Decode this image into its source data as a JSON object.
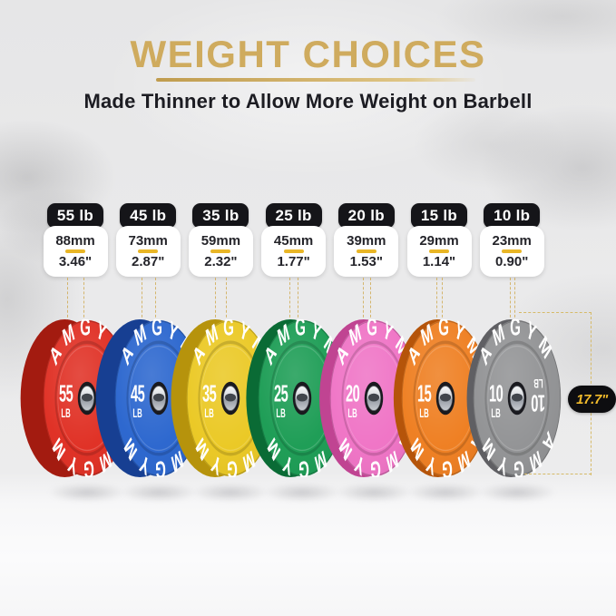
{
  "header": {
    "title": "WEIGHT CHOICES",
    "subtitle": "Made Thinner to Allow More Weight on Barbell"
  },
  "brand_text": "AMGYM",
  "diameter": {
    "label": "17.7\""
  },
  "plates": [
    {
      "label": "55 lb",
      "weight": "55",
      "unit": "LB",
      "thickness_mm": "88mm",
      "thickness_in": "3.46\"",
      "face_color": "#df2a1e",
      "rim_color": "#a31b10",
      "mirrored_weight": false
    },
    {
      "label": "45 lb",
      "weight": "45",
      "unit": "LB",
      "thickness_mm": "73mm",
      "thickness_in": "2.87\"",
      "face_color": "#2562cd",
      "rim_color": "#173f92",
      "mirrored_weight": false
    },
    {
      "label": "35 lb",
      "weight": "35",
      "unit": "LB",
      "thickness_mm": "59mm",
      "thickness_in": "2.32\"",
      "face_color": "#eac71e",
      "rim_color": "#b6930c",
      "mirrored_weight": false
    },
    {
      "label": "25 lb",
      "weight": "25",
      "unit": "LB",
      "thickness_mm": "45mm",
      "thickness_in": "1.77\"",
      "face_color": "#169a50",
      "rim_color": "#0a6b35",
      "mirrored_weight": false
    },
    {
      "label": "20 lb",
      "weight": "20",
      "unit": "LB",
      "thickness_mm": "39mm",
      "thickness_in": "1.53\"",
      "face_color": "#ef70c4",
      "rim_color": "#c04492",
      "mirrored_weight": false
    },
    {
      "label": "15 lb",
      "weight": "15",
      "unit": "LB",
      "thickness_mm": "29mm",
      "thickness_in": "1.14\"",
      "face_color": "#ee7b1b",
      "rim_color": "#b5540a",
      "mirrored_weight": false
    },
    {
      "label": "10 lb",
      "weight": "10",
      "unit": "LB",
      "thickness_mm": "23mm",
      "thickness_in": "0.90\"",
      "face_color": "#8f9092",
      "rim_color": "#5f5f63",
      "mirrored_weight": true
    }
  ],
  "colors": {
    "gold_title": "#cfab5e",
    "gold_divider": "#e9b626",
    "gold_dash": "#d6ba68",
    "badge_bg": "#0d0d10",
    "badge_text": "#f2bb2b",
    "pill_bg": "#151519",
    "plate_text": "#ffffff"
  }
}
